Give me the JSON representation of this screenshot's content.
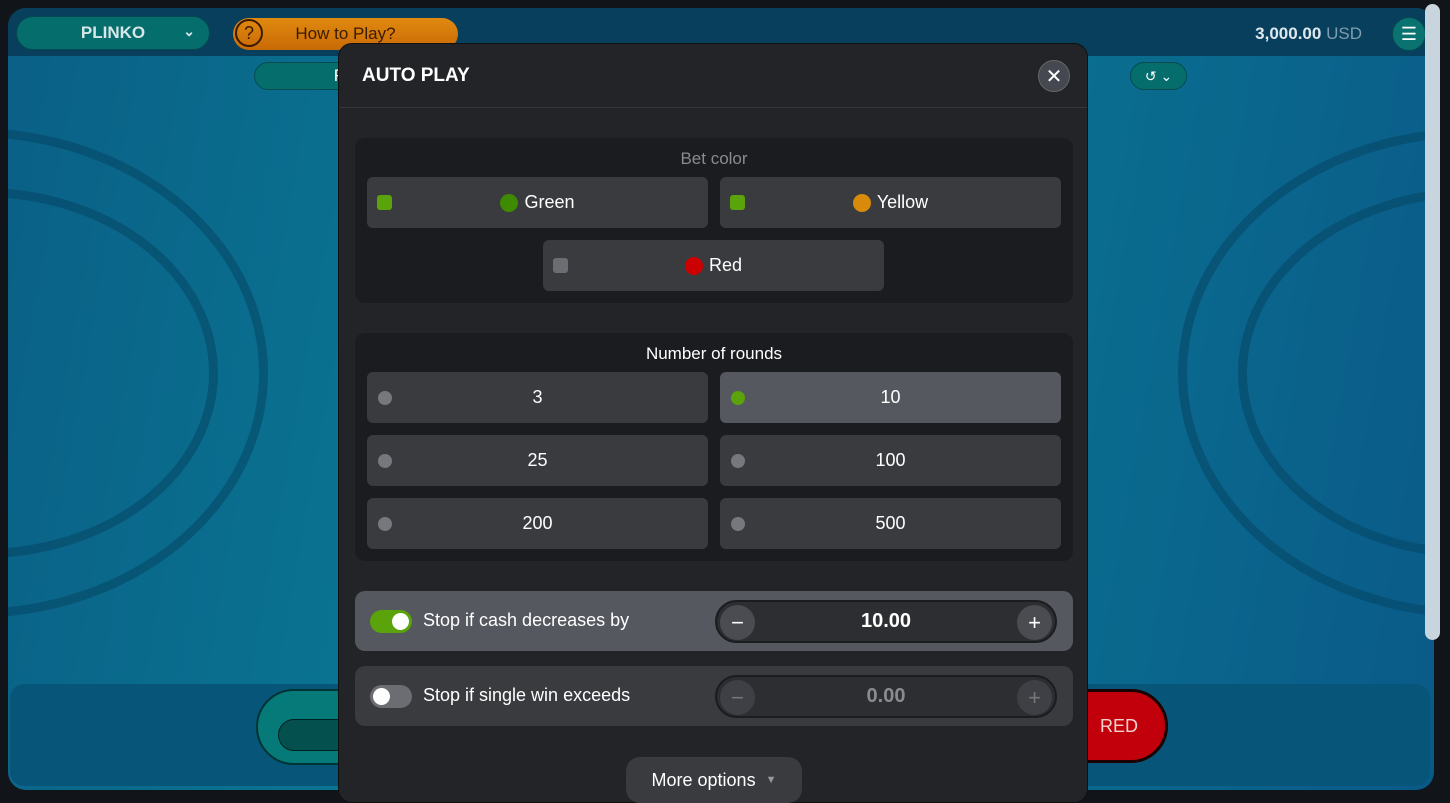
{
  "header": {
    "game": "PLINKO",
    "how_to_play": "How to Play?",
    "balance": "3,000.00",
    "currency": "USD",
    "sub_tab_partial": "F"
  },
  "bottom": {
    "red_button": "RED"
  },
  "modal": {
    "title": "AUTO PLAY",
    "bet_color": {
      "title": "Bet color",
      "options": [
        {
          "label": "Green",
          "color": "#3e8a00",
          "selected": true
        },
        {
          "label": "Yellow",
          "color": "#d88a0b",
          "selected": true
        },
        {
          "label": "Red",
          "color": "#cc0000",
          "selected": false
        }
      ]
    },
    "rounds": {
      "title": "Number of rounds",
      "options": [
        "3",
        "10",
        "25",
        "100",
        "200",
        "500"
      ],
      "selected": "10"
    },
    "stop_loss": {
      "label": "Stop if cash decreases by",
      "enabled": true,
      "value": "10.00"
    },
    "stop_win": {
      "label": "Stop if single win exceeds",
      "enabled": false,
      "value": "0.00"
    },
    "more_options": "More options"
  },
  "colors": {
    "accent_green": "#5aa30a",
    "modal_bg": "#232427"
  }
}
